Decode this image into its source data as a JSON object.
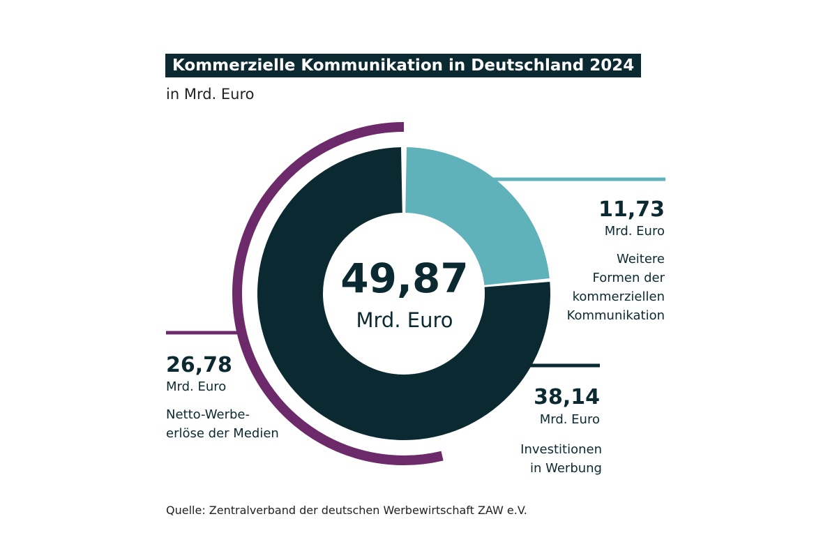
{
  "title": "Kommerzielle Kommunikation in Deutschland 2024",
  "subtitle": "in Mrd. Euro",
  "center": {
    "value": "49,87",
    "unit": "Mrd. Euro"
  },
  "source": "Quelle: Zentralverband der deutschen Werbewirtschaft ZAW e.V.",
  "colors": {
    "dark": "#0b2930",
    "teal": "#5fb2ba",
    "purple": "#6d2a6a",
    "title_bg": "#0b2930"
  },
  "chart_data": {
    "type": "pie",
    "style": "donut",
    "title": "Kommerzielle Kommunikation in Deutschland 2024",
    "subtitle": "in Mrd. Euro",
    "unit": "Mrd. Euro",
    "total": 49.87,
    "total_label": "49,87",
    "slices": [
      {
        "name": "Weitere Formen der kommerziellen Kommunikation",
        "value": 11.73,
        "value_label": "11,73",
        "unit": "Mrd. Euro",
        "desc_lines": [
          "Weitere",
          "Formen der",
          "kommerziellen",
          "Kommunikation"
        ],
        "color": "#5fb2ba"
      },
      {
        "name": "Investitionen in Werbung",
        "value": 38.14,
        "value_label": "38,14",
        "unit": "Mrd. Euro",
        "desc_lines": [
          "Investitionen",
          "in Werbung"
        ],
        "color": "#0b2930"
      }
    ],
    "subset_arc": {
      "name": "Netto-Werbeerlöse der Medien",
      "value": 26.78,
      "value_label": "26,78",
      "unit": "Mrd. Euro",
      "desc_lines": [
        "Netto-Werbe-",
        "erlöse der Medien"
      ],
      "color": "#6d2a6a"
    }
  }
}
